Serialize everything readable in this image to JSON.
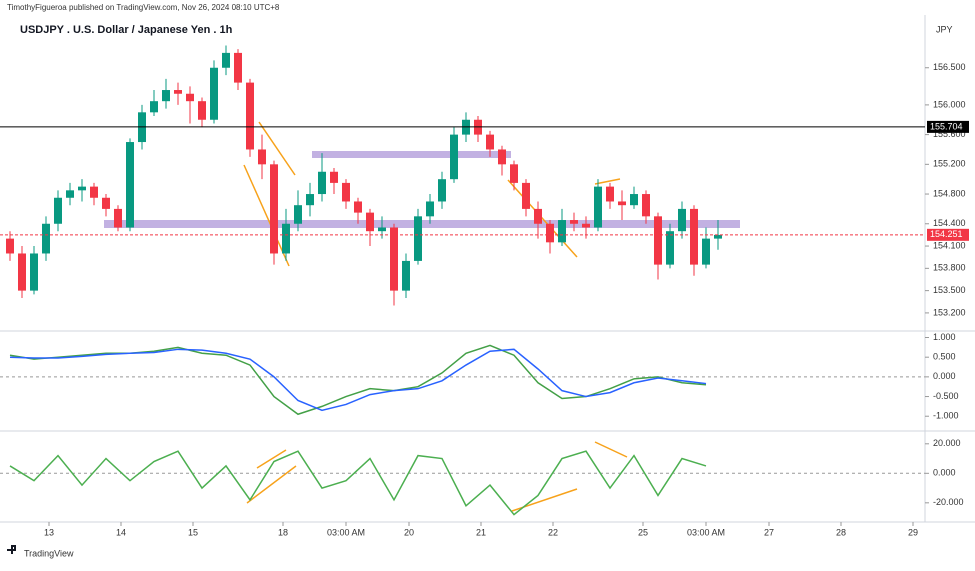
{
  "header": {
    "published": "TimothyFigueroa published on TradingView.com, Nov 26, 2024 08:10 UTC+8",
    "title": "USDJPY . U.S. Dollar / Japanese Yen . 1h",
    "currency": "JPY",
    "footer": "TradingView"
  },
  "chart_data": [
    {
      "type": "candlestick",
      "up_color": "#089981",
      "down_color": "#f23645",
      "x": [
        -13,
        -9,
        -5,
        -1,
        3,
        7,
        11,
        15,
        19,
        23,
        27,
        31,
        35,
        39,
        43,
        47,
        51,
        55,
        59,
        63,
        67,
        71,
        75,
        79,
        83,
        87,
        91,
        95,
        99,
        103,
        107,
        111,
        115,
        119,
        123,
        127,
        131,
        135,
        139,
        143,
        147,
        151,
        155,
        159,
        163,
        167,
        171,
        175,
        179,
        183,
        187,
        191,
        195,
        199,
        203,
        207,
        211,
        215,
        219,
        223
      ],
      "open": [
        154.2,
        154.0,
        153.5,
        154.0,
        154.4,
        154.75,
        154.85,
        154.9,
        154.75,
        154.6,
        154.35,
        155.5,
        155.9,
        156.05,
        156.2,
        156.15,
        156.05,
        155.8,
        156.5,
        156.7,
        156.3,
        155.4,
        155.2,
        154.0,
        154.4,
        154.65,
        154.8,
        155.1,
        154.95,
        154.7,
        154.55,
        154.3,
        154.35,
        153.5,
        153.9,
        154.5,
        154.7,
        155.0,
        155.6,
        155.8,
        155.6,
        155.4,
        155.2,
        154.95,
        154.6,
        154.4,
        154.15,
        154.45,
        154.4,
        154.35,
        154.9,
        154.7,
        154.65,
        154.8,
        154.5,
        153.85,
        154.3,
        154.6,
        153.85,
        154.2
      ],
      "high": [
        154.3,
        154.1,
        154.1,
        154.5,
        154.85,
        154.95,
        155.0,
        154.95,
        154.8,
        154.65,
        155.55,
        156.0,
        156.2,
        156.35,
        156.3,
        156.25,
        156.1,
        156.6,
        156.8,
        156.75,
        156.35,
        155.6,
        155.25,
        154.6,
        154.85,
        154.95,
        155.35,
        155.15,
        155.0,
        154.75,
        154.6,
        154.5,
        154.4,
        154.0,
        154.6,
        154.8,
        155.1,
        155.7,
        155.9,
        155.85,
        155.65,
        155.45,
        155.25,
        155.0,
        154.7,
        154.45,
        154.6,
        154.55,
        154.5,
        155.0,
        154.95,
        154.85,
        154.9,
        154.85,
        154.55,
        154.4,
        154.7,
        154.65,
        154.35,
        154.45
      ],
      "low": [
        153.9,
        153.4,
        153.45,
        153.9,
        154.3,
        154.65,
        154.7,
        154.65,
        154.5,
        154.3,
        154.3,
        155.4,
        155.85,
        155.95,
        156.0,
        155.75,
        155.7,
        155.75,
        156.4,
        156.2,
        155.3,
        155.0,
        153.85,
        153.9,
        154.3,
        154.5,
        154.7,
        154.8,
        154.6,
        154.4,
        154.1,
        154.2,
        153.3,
        153.4,
        153.85,
        154.4,
        154.6,
        154.95,
        155.5,
        155.5,
        155.3,
        155.05,
        154.85,
        154.5,
        154.2,
        154.0,
        154.1,
        154.3,
        154.2,
        154.3,
        154.6,
        154.45,
        154.6,
        154.4,
        153.65,
        153.8,
        154.2,
        153.7,
        153.8,
        154.05
      ],
      "close": [
        154.0,
        153.5,
        154.0,
        154.4,
        154.75,
        154.85,
        154.9,
        154.75,
        154.6,
        154.35,
        155.5,
        155.9,
        156.05,
        156.2,
        156.15,
        156.05,
        155.8,
        156.5,
        156.7,
        156.3,
        155.4,
        155.2,
        154.0,
        154.4,
        154.65,
        154.8,
        155.1,
        154.95,
        154.7,
        154.55,
        154.3,
        154.35,
        153.5,
        153.9,
        154.5,
        154.7,
        155.0,
        155.6,
        155.8,
        155.6,
        155.4,
        155.2,
        154.95,
        154.6,
        154.4,
        154.15,
        154.45,
        154.4,
        154.35,
        154.9,
        154.7,
        154.65,
        154.8,
        154.5,
        153.85,
        154.3,
        154.6,
        153.85,
        154.2,
        154.25
      ],
      "xlim": [
        -14,
        292
      ],
      "ylim": [
        152.97,
        157.21
      ],
      "yticks": [
        {
          "value": 156.5,
          "label": "156.500"
        },
        {
          "value": 156.0,
          "label": "156.000"
        },
        {
          "value": 155.6,
          "label": "155.600"
        },
        {
          "value": 155.2,
          "label": "155.200"
        },
        {
          "value": 154.8,
          "label": "154.800"
        },
        {
          "value": 154.4,
          "label": "154.400"
        },
        {
          "value": 154.1,
          "label": "154.100"
        },
        {
          "value": 153.8,
          "label": "153.800"
        },
        {
          "value": 153.5,
          "label": "153.500"
        },
        {
          "value": 153.2,
          "label": "153.200"
        }
      ],
      "xticks": [
        {
          "value": 0,
          "label": "13"
        },
        {
          "value": 24,
          "label": "14"
        },
        {
          "value": 48,
          "label": "15"
        },
        {
          "value": 78,
          "label": "18"
        },
        {
          "value": 99,
          "label": "03:00 AM"
        },
        {
          "value": 120,
          "label": "20"
        },
        {
          "value": 144,
          "label": "21"
        },
        {
          "value": 168,
          "label": "22"
        },
        {
          "value": 198,
          "label": "25"
        },
        {
          "value": 219,
          "label": "03:00 AM"
        },
        {
          "value": 240,
          "label": "27"
        },
        {
          "value": 264,
          "label": "28"
        },
        {
          "value": 288,
          "label": "29"
        }
      ],
      "level": {
        "value": 155.704,
        "color": "#000000"
      },
      "last_price": {
        "value": 154.251,
        "color": "#f23645"
      }
    },
    {
      "type": "line",
      "x": [
        -13,
        -5,
        3,
        11,
        19,
        27,
        35,
        43,
        51,
        59,
        67,
        75,
        83,
        91,
        99,
        107,
        115,
        123,
        131,
        139,
        147,
        155,
        163,
        171,
        179,
        187,
        195,
        203,
        211,
        219
      ],
      "series": [
        {
          "color": "#43a047",
          "values": [
            0.55,
            0.45,
            0.5,
            0.55,
            0.6,
            0.6,
            0.65,
            0.75,
            0.6,
            0.55,
            0.3,
            -0.5,
            -0.95,
            -0.75,
            -0.5,
            -0.3,
            -0.35,
            -0.25,
            0.1,
            0.6,
            0.8,
            0.55,
            -0.15,
            -0.55,
            -0.5,
            -0.3,
            -0.05,
            0.0,
            -0.15,
            -0.2
          ]
        },
        {
          "color": "#2962ff",
          "values": [
            0.5,
            0.48,
            0.48,
            0.52,
            0.57,
            0.6,
            0.62,
            0.7,
            0.68,
            0.6,
            0.45,
            0.0,
            -0.6,
            -0.85,
            -0.7,
            -0.45,
            -0.35,
            -0.3,
            -0.1,
            0.3,
            0.65,
            0.7,
            0.2,
            -0.35,
            -0.5,
            -0.4,
            -0.15,
            -0.03,
            -0.1,
            -0.17
          ]
        }
      ],
      "ylim": [
        -1.35,
        1.14
      ],
      "yticks": [
        {
          "value": 1,
          "label": "1.000"
        },
        {
          "value": 0.5,
          "label": "0.500"
        },
        {
          "value": 0,
          "label": "0.000"
        },
        {
          "value": -0.5,
          "label": "-0.500"
        },
        {
          "value": -1,
          "label": "-1.000"
        }
      ]
    },
    {
      "type": "line",
      "x": [
        -13,
        -5,
        3,
        11,
        19,
        27,
        35,
        43,
        51,
        59,
        67,
        75,
        83,
        91,
        99,
        107,
        115,
        123,
        131,
        139,
        147,
        155,
        163,
        171,
        179,
        187,
        195,
        203,
        211,
        219
      ],
      "series": [
        {
          "color": "#4caf50",
          "values": [
            5,
            -5,
            12,
            -8,
            10,
            -5,
            8,
            15,
            -10,
            5,
            -18,
            8,
            15,
            -10,
            -5,
            10,
            -18,
            12,
            10,
            -22,
            -8,
            -28,
            -15,
            10,
            15,
            -10,
            12,
            -15,
            10,
            5
          ]
        }
      ],
      "ylim": [
        -33,
        28
      ],
      "yticks": [
        {
          "value": 20,
          "label": "20.000"
        },
        {
          "value": 0,
          "label": "0.000"
        },
        {
          "value": -20,
          "label": "-20.000"
        }
      ]
    }
  ]
}
